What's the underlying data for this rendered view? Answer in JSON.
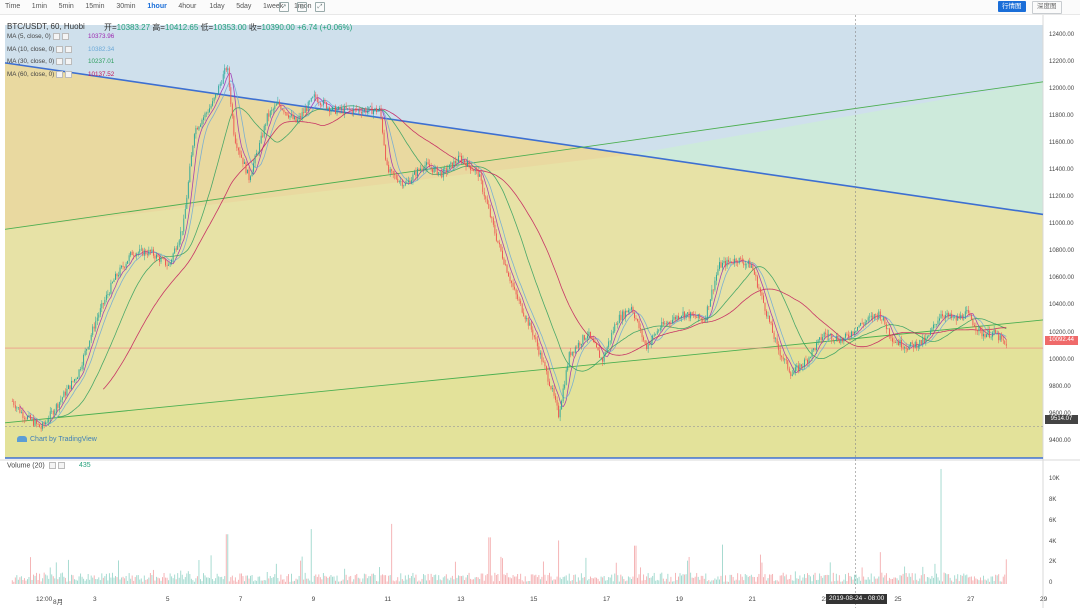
{
  "toolbar": {
    "intervals": [
      {
        "label": "Time",
        "active": false
      },
      {
        "label": "1min",
        "active": false
      },
      {
        "label": "5min",
        "active": false
      },
      {
        "label": "15min",
        "active": false
      },
      {
        "label": "30min",
        "active": false
      },
      {
        "label": "1hour",
        "active": true
      },
      {
        "label": "4hour",
        "active": false
      },
      {
        "label": "1day",
        "active": false
      },
      {
        "label": "5day",
        "active": false
      },
      {
        "label": "1week",
        "active": false
      },
      {
        "label": "1mon",
        "active": false
      }
    ],
    "icons": [
      "chart-style-icon",
      "indicator-icon",
      "fullscreen-icon"
    ],
    "primary_button": "行情图",
    "secondary_button": "深度图"
  },
  "header": {
    "symbol": "BTC/USDT, 60, Huobi",
    "open_label": "开=",
    "open": "10383.27",
    "high_label": "高=",
    "high": "10412.65",
    "low_label": "低=",
    "low": "10353.00",
    "close_label": "收=",
    "close": "10390.00",
    "change": "+6.74 (+0.06%)"
  },
  "ma_lines": [
    {
      "label": "MA (5, close, 0)",
      "value": "10373.96",
      "color": "#9c27b0"
    },
    {
      "label": "MA (10, close, 0)",
      "value": "10382.34",
      "color": "#6aa8d8"
    },
    {
      "label": "MA (30, close, 0)",
      "value": "10237.01",
      "color": "#2e9e5e"
    },
    {
      "label": "MA (60, close, 0)",
      "value": "10137.52",
      "color": "#c2185b"
    }
  ],
  "watermark": "Chart by TradingView",
  "volume": {
    "title": "Volume (20)",
    "value": "435",
    "y_ticks": [
      "10K",
      "8K",
      "6K",
      "4K",
      "2K",
      "0"
    ]
  },
  "crosshair_label": "2019-08-24 - 08:00",
  "colors": {
    "up": "#26a69a",
    "down": "#ef5350",
    "fan_blue": "#3d6fd1",
    "fan_green": "#4caf50"
  },
  "chart_data": {
    "type": "candlestick",
    "title": "BTC/USDT, 60, Huobi",
    "y_range": [
      9280,
      12480
    ],
    "y_ticks": [
      "12400.00",
      "12200.00",
      "12000.00",
      "11800.00",
      "11600.00",
      "11400.00",
      "11200.00",
      "11000.00",
      "10800.00",
      "10600.00",
      "10400.00",
      "10200.00",
      "10000.00",
      "9800.00",
      "9600.00",
      "9400.00"
    ],
    "x_ticks": [
      "12:00",
      "8月",
      "3",
      "5",
      "7",
      "9",
      "11",
      "13",
      "15",
      "17",
      "19",
      "21",
      "23",
      "25",
      "27",
      "29"
    ],
    "x_range_days": [
      0.5,
      29
    ],
    "current_price": "10092.44",
    "support_price": "9514.07",
    "path_key_points": [
      [
        0.7,
        9700
      ],
      [
        1.0,
        9600
      ],
      [
        1.5,
        9500
      ],
      [
        2.0,
        9700
      ],
      [
        2.5,
        9900
      ],
      [
        3.0,
        10300
      ],
      [
        3.5,
        10600
      ],
      [
        4.0,
        10800
      ],
      [
        4.5,
        10800
      ],
      [
        5.0,
        10700
      ],
      [
        5.4,
        11000
      ],
      [
        5.7,
        11700
      ],
      [
        6.2,
        11900
      ],
      [
        6.6,
        12180
      ],
      [
        6.8,
        11650
      ],
      [
        7.2,
        11350
      ],
      [
        7.5,
        11600
      ],
      [
        7.7,
        11800
      ],
      [
        8.0,
        11900
      ],
      [
        8.5,
        11760
      ],
      [
        9.0,
        11950
      ],
      [
        9.5,
        11850
      ],
      [
        10.0,
        11850
      ],
      [
        10.8,
        11850
      ],
      [
        11.0,
        11400
      ],
      [
        11.5,
        11300
      ],
      [
        12.0,
        11450
      ],
      [
        12.5,
        11380
      ],
      [
        13.0,
        11500
      ],
      [
        13.5,
        11380
      ],
      [
        14.0,
        10900
      ],
      [
        14.5,
        10500
      ],
      [
        15.0,
        10200
      ],
      [
        15.5,
        9800
      ],
      [
        15.7,
        9600
      ],
      [
        16.0,
        10050
      ],
      [
        16.5,
        10200
      ],
      [
        16.9,
        10000
      ],
      [
        17.3,
        10300
      ],
      [
        17.7,
        10400
      ],
      [
        18.1,
        10100
      ],
      [
        18.5,
        10250
      ],
      [
        19.1,
        10350
      ],
      [
        19.7,
        10300
      ],
      [
        20.1,
        10700
      ],
      [
        20.6,
        10750
      ],
      [
        21.0,
        10700
      ],
      [
        21.3,
        10450
      ],
      [
        21.7,
        10100
      ],
      [
        22.1,
        9900
      ],
      [
        22.5,
        10000
      ],
      [
        23.0,
        10200
      ],
      [
        23.5,
        10150
      ],
      [
        23.9,
        10250
      ],
      [
        24.5,
        10350
      ],
      [
        24.9,
        10150
      ],
      [
        25.3,
        10100
      ],
      [
        25.8,
        10150
      ],
      [
        26.2,
        10350
      ],
      [
        26.6,
        10300
      ],
      [
        26.9,
        10350
      ],
      [
        27.3,
        10200
      ],
      [
        27.7,
        10200
      ],
      [
        28.0,
        10100
      ]
    ],
    "volume_range": [
      0,
      11000
    ],
    "volume_spikes": [
      [
        6.6,
        4800
      ],
      [
        8.9,
        5300
      ],
      [
        11.1,
        5800
      ],
      [
        13.8,
        4500
      ],
      [
        15.7,
        4200
      ],
      [
        17.8,
        3700
      ],
      [
        20.2,
        3800
      ],
      [
        26.2,
        11100
      ]
    ],
    "fan_lines": [
      {
        "name": "upper",
        "from": [
          0.5,
          12200
        ],
        "to": [
          29,
          11080
        ],
        "color": "blue"
      },
      {
        "name": "middle",
        "from": [
          0.5,
          10970
        ],
        "to": [
          29,
          12060
        ],
        "color": "green"
      },
      {
        "name": "lower",
        "from": [
          0.5,
          9540
        ],
        "to": [
          29,
          10300
        ],
        "color": "green"
      },
      {
        "name": "bottom",
        "from": [
          0.5,
          9280
        ],
        "to": [
          29,
          9280
        ],
        "color": "blue"
      }
    ],
    "grid": false,
    "legend_placement": "top-left"
  }
}
